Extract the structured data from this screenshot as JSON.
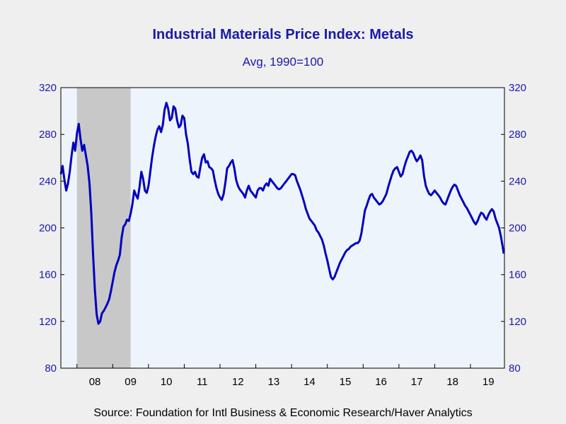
{
  "chart_data": {
    "type": "line",
    "title": "Industrial Materials Price Index: Metals",
    "subtitle": "Avg, 1990=100",
    "source": "Source:  Foundation for Intl Business & Economic Research/Haver Analytics",
    "xlabel": "",
    "ylabel": "",
    "ylim": [
      80,
      320
    ],
    "yticks": [
      "80",
      "120",
      "160",
      "200",
      "240",
      "280",
      "320"
    ],
    "xlim": [
      2007.55,
      2019.95
    ],
    "year_labels": [
      "08",
      "09",
      "10",
      "11",
      "12",
      "13",
      "14",
      "15",
      "16",
      "17",
      "18",
      "19"
    ],
    "recession": {
      "start": 2008.0,
      "end": 2009.5
    },
    "colors": {
      "line": "#0000bf",
      "recession": "#c8c8c8",
      "plot_bg": "#eef4fc",
      "text": "#1a1aa8"
    },
    "grid": false,
    "series": [
      {
        "x": [
          2007.55,
          2007.6,
          2007.65,
          2007.7,
          2007.75,
          2007.8,
          2007.85,
          2007.9,
          2007.95,
          2008.0,
          2008.05,
          2008.1,
          2008.15,
          2008.2,
          2008.25,
          2008.3,
          2008.35,
          2008.4,
          2008.45,
          2008.5,
          2008.55,
          2008.6,
          2008.65,
          2008.7,
          2008.75,
          2008.8,
          2008.85,
          2008.9,
          2008.95,
          2009.0,
          2009.05,
          2009.1,
          2009.15,
          2009.2,
          2009.25,
          2009.3,
          2009.35,
          2009.4,
          2009.45,
          2009.5,
          2009.55,
          2009.6,
          2009.65,
          2009.7,
          2009.75,
          2009.8,
          2009.85,
          2009.9,
          2009.95,
          2010.0,
          2010.05,
          2010.1,
          2010.15,
          2010.2,
          2010.25,
          2010.3,
          2010.35,
          2010.4,
          2010.45,
          2010.5,
          2010.55,
          2010.6,
          2010.65,
          2010.7,
          2010.75,
          2010.8,
          2010.85,
          2010.9,
          2010.95,
          2011.0,
          2011.05,
          2011.1,
          2011.15,
          2011.2,
          2011.25,
          2011.3,
          2011.35,
          2011.4,
          2011.45,
          2011.5,
          2011.55,
          2011.6,
          2011.65,
          2011.7,
          2011.75,
          2011.8,
          2011.85,
          2011.9,
          2011.95,
          2012.0,
          2012.05,
          2012.1,
          2012.15,
          2012.2,
          2012.25,
          2012.3,
          2012.35,
          2012.4,
          2012.45,
          2012.5,
          2012.55,
          2012.6,
          2012.65,
          2012.7,
          2012.75,
          2012.8,
          2012.85,
          2012.9,
          2012.95,
          2013.0,
          2013.05,
          2013.1,
          2013.15,
          2013.2,
          2013.25,
          2013.3,
          2013.35,
          2013.4,
          2013.45,
          2013.5,
          2013.55,
          2013.6,
          2013.65,
          2013.7,
          2013.75,
          2013.8,
          2013.85,
          2013.9,
          2013.95,
          2014.0,
          2014.05,
          2014.1,
          2014.15,
          2014.2,
          2014.25,
          2014.3,
          2014.35,
          2014.4,
          2014.45,
          2014.5,
          2014.55,
          2014.6,
          2014.65,
          2014.7,
          2014.75,
          2014.8,
          2014.85,
          2014.9,
          2014.95,
          2015.0,
          2015.05,
          2015.1,
          2015.15,
          2015.2,
          2015.25,
          2015.3,
          2015.35,
          2015.4,
          2015.45,
          2015.5,
          2015.55,
          2015.6,
          2015.65,
          2015.7,
          2015.75,
          2015.8,
          2015.85,
          2015.9,
          2015.95,
          2016.0,
          2016.05,
          2016.1,
          2016.15,
          2016.2,
          2016.25,
          2016.3,
          2016.35,
          2016.4,
          2016.45,
          2016.5,
          2016.55,
          2016.6,
          2016.65,
          2016.7,
          2016.75,
          2016.8,
          2016.85,
          2016.9,
          2016.95,
          2017.0,
          2017.05,
          2017.1,
          2017.15,
          2017.2,
          2017.25,
          2017.3,
          2017.35,
          2017.4,
          2017.45,
          2017.5,
          2017.55,
          2017.6,
          2017.65,
          2017.7,
          2017.75,
          2017.8,
          2017.85,
          2017.9,
          2017.95,
          2018.0,
          2018.05,
          2018.1,
          2018.15,
          2018.2,
          2018.25,
          2018.3,
          2018.35,
          2018.4,
          2018.45,
          2018.5,
          2018.55,
          2018.6,
          2018.65,
          2018.7,
          2018.75,
          2018.8,
          2018.85,
          2018.9,
          2018.95,
          2019.0,
          2019.05,
          2019.1,
          2019.15,
          2019.2,
          2019.25,
          2019.3,
          2019.35,
          2019.4,
          2019.45,
          2019.5,
          2019.55,
          2019.6,
          2019.65,
          2019.7,
          2019.75,
          2019.8,
          2019.85,
          2019.9,
          2019.93
        ],
        "y": [
          246,
          253,
          241,
          232,
          238,
          248,
          262,
          273,
          266,
          281,
          289,
          276,
          266,
          271,
          262,
          253,
          238,
          213,
          178,
          148,
          126,
          118,
          120,
          127,
          129,
          132,
          135,
          139,
          146,
          154,
          162,
          168,
          172,
          177,
          192,
          201,
          203,
          207,
          206,
          212,
          220,
          232,
          228,
          225,
          235,
          248,
          242,
          232,
          230,
          236,
          248,
          260,
          270,
          278,
          284,
          287,
          282,
          288,
          301,
          307,
          302,
          292,
          294,
          304,
          302,
          292,
          286,
          288,
          296,
          294,
          280,
          272,
          259,
          248,
          246,
          248,
          244,
          243,
          252,
          260,
          263,
          256,
          257,
          252,
          251,
          249,
          241,
          234,
          229,
          226,
          224,
          229,
          239,
          251,
          253,
          256,
          258,
          251,
          241,
          236,
          233,
          231,
          229,
          226,
          232,
          236,
          232,
          230,
          228,
          226,
          232,
          234,
          234,
          232,
          236,
          238,
          236,
          242,
          240,
          238,
          236,
          234,
          233,
          234,
          236,
          238,
          240,
          242,
          244,
          246,
          246,
          245,
          240,
          236,
          232,
          227,
          222,
          216,
          212,
          208,
          206,
          204,
          202,
          198,
          196,
          193,
          190,
          185,
          178,
          172,
          165,
          158,
          156,
          158,
          162,
          166,
          170,
          173,
          176,
          179,
          181,
          182,
          184,
          185,
          186,
          187,
          187,
          189,
          195,
          205,
          215,
          219,
          224,
          228,
          229,
          226,
          224,
          222,
          220,
          221,
          223,
          226,
          229,
          235,
          240,
          245,
          249,
          251,
          252,
          248,
          244,
          246,
          252,
          257,
          261,
          265,
          266,
          264,
          260,
          257,
          259,
          262,
          258,
          245,
          236,
          232,
          229,
          228,
          230,
          232,
          230,
          228,
          226,
          223,
          221,
          220,
          224,
          228,
          232,
          235,
          237,
          236,
          232,
          228,
          225,
          222,
          219,
          217,
          214,
          211,
          208,
          205,
          203,
          206,
          210,
          213,
          212,
          209,
          207,
          211,
          214,
          216,
          214,
          208,
          204,
          200,
          193,
          184,
          178
        ]
      }
    ]
  }
}
